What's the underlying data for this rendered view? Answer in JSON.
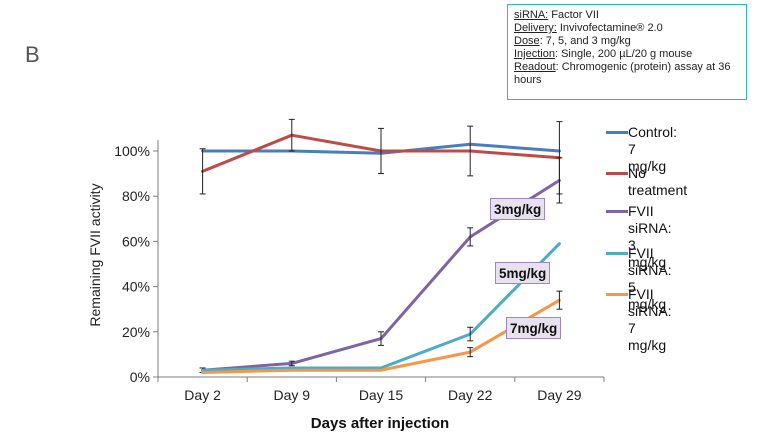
{
  "panel_letter": "B",
  "info_box": {
    "lines": [
      {
        "key": "siRNA:",
        "value": " Factor VII"
      },
      {
        "key": "Delivery:",
        "value": " Invivofectamine® 2.0"
      },
      {
        "key": "Dose",
        "value": ": 7, 5, and 3 mg/kg"
      },
      {
        "key": "Injection",
        "value": ": Single, 200 µL/20 g mouse"
      },
      {
        "key": "Readout",
        "value": ": Chromogenic (protein) assay at 36 hours"
      }
    ]
  },
  "annotations": {
    "dose_3": "3mg/kg",
    "dose_5": "5mg/kg",
    "dose_7": "7mg/kg"
  },
  "chart_data": {
    "type": "line",
    "xlabel": "Days after injection",
    "ylabel": "Remaining FVII activity",
    "categories": [
      "Day 2",
      "Day 9",
      "Day 15",
      "Day 22",
      "Day 29"
    ],
    "y_ticks": [
      "0%",
      "20%",
      "40%",
      "60%",
      "80%",
      "100%"
    ],
    "ylim": [
      0,
      100
    ],
    "grid": false,
    "legend_position": "right",
    "series": [
      {
        "name": "Control: 7 mg/kg",
        "color": "#4a7ebb",
        "values": [
          100,
          100,
          99,
          103,
          100
        ],
        "error": [
          0,
          0,
          0,
          0,
          0
        ]
      },
      {
        "name": "No treatment",
        "color": "#be4b48",
        "values": [
          91,
          107,
          100,
          100,
          97
        ],
        "error": [
          10,
          7,
          10,
          11,
          16
        ]
      },
      {
        "name": "FVII siRNA:\n3 mg/kg",
        "color": "#7f63a4",
        "values": [
          3,
          6,
          17,
          62,
          87
        ],
        "error": [
          1,
          1,
          3,
          4,
          10
        ]
      },
      {
        "name": "FVII siRNA:\n5 mg/kg",
        "color": "#4bacc6",
        "values": [
          3,
          4,
          4,
          19,
          59
        ],
        "error": [
          0,
          0,
          0,
          3,
          0
        ]
      },
      {
        "name": "FVII siRNA:\n7 mg/kg",
        "color": "#f79646",
        "values": [
          2,
          3,
          3,
          11,
          34
        ],
        "error": [
          0,
          0,
          0,
          2,
          4
        ]
      }
    ]
  }
}
